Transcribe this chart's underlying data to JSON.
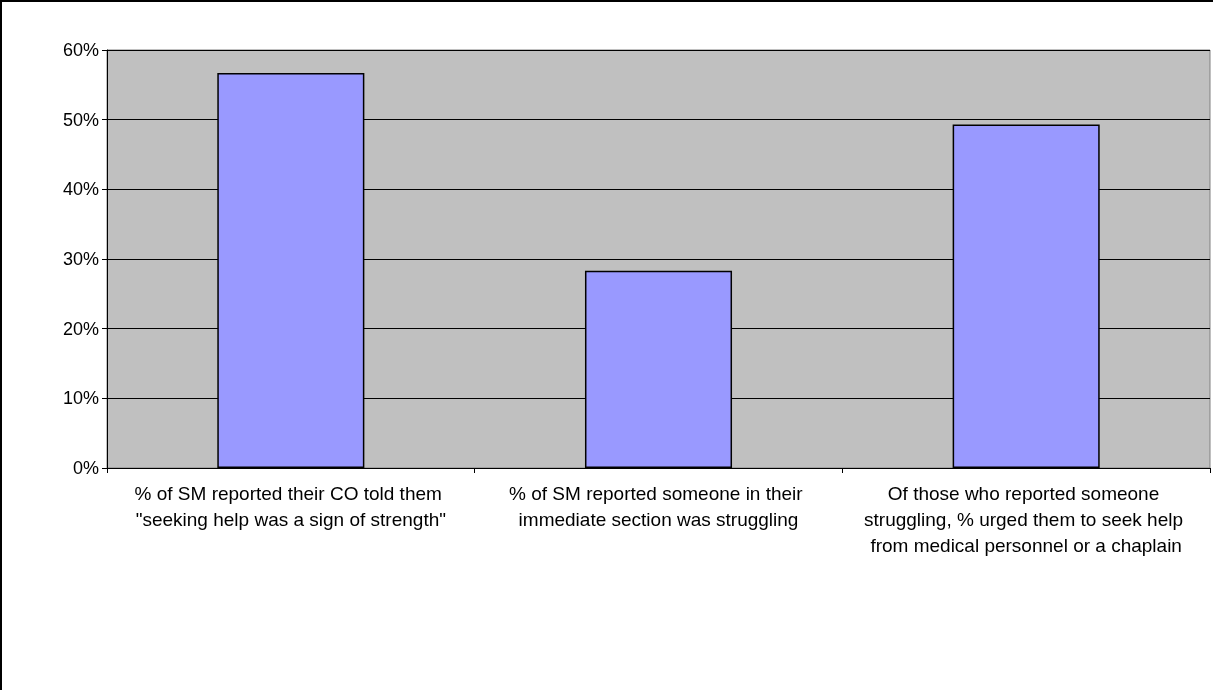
{
  "chart_data": {
    "type": "bar",
    "categories": [
      "% of SM reported their CO told them \"seeking help was a sign of strength\"",
      "% of SM reported someone in their immediate section was struggling",
      "Of those who reported someone struggling, % urged them to seek help from medical personnel or a chaplain"
    ],
    "values": [
      56.7,
      28.3,
      49.3
    ],
    "color": "#9999ff",
    "ylim": [
      0,
      60
    ],
    "yticks": [
      {
        "value": 0,
        "label": "0%"
      },
      {
        "value": 10,
        "label": "10%"
      },
      {
        "value": 20,
        "label": "20%"
      },
      {
        "value": 30,
        "label": "30%"
      },
      {
        "value": 40,
        "label": "40%"
      },
      {
        "value": 50,
        "label": "50%"
      },
      {
        "value": 60,
        "label": "60%"
      }
    ],
    "grid": "y"
  }
}
